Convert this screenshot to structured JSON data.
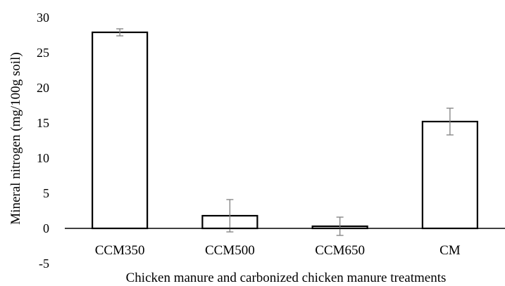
{
  "chart_data": {
    "type": "bar",
    "title": "",
    "xlabel": "Chicken manure and carbonized chicken manure treatments",
    "ylabel": "Mineral nitrogen (mg/100g soil)",
    "categories": [
      "CCM350",
      "CCM500",
      "CCM650",
      "CM"
    ],
    "values": [
      27.9,
      1.8,
      0.3,
      15.2
    ],
    "errors": [
      0.5,
      2.3,
      1.3,
      1.9
    ],
    "ylim": [
      -5,
      30
    ],
    "yticks": [
      -5,
      0,
      5,
      10,
      15,
      20,
      25,
      30
    ],
    "grid": false,
    "legend": "none",
    "bar_fill": "#ffffff",
    "bar_stroke": "#000000",
    "errorbar_color": "#7f7f7f"
  }
}
